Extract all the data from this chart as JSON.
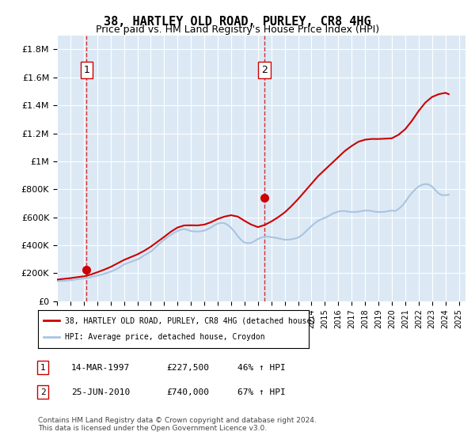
{
  "title": "38, HARTLEY OLD ROAD, PURLEY, CR8 4HG",
  "subtitle": "Price paid vs. HM Land Registry's House Price Index (HPI)",
  "background_color": "#dce9f5",
  "plot_bg_color": "#dce9f5",
  "hpi_color": "#aac4e0",
  "price_color": "#cc0000",
  "ylim": [
    0,
    1900000
  ],
  "yticks": [
    0,
    200000,
    400000,
    600000,
    800000,
    1000000,
    1200000,
    1400000,
    1600000,
    1800000
  ],
  "ytick_labels": [
    "£0",
    "£200K",
    "£400K",
    "£600K",
    "£800K",
    "£1M",
    "£1.2M",
    "£1.4M",
    "£1.6M",
    "£1.8M"
  ],
  "xlim_start": 1995.0,
  "xlim_end": 2025.5,
  "purchase1_x": 1997.2,
  "purchase1_y": 227500,
  "purchase2_x": 2010.48,
  "purchase2_y": 740000,
  "legend_label_price": "38, HARTLEY OLD ROAD, PURLEY, CR8 4HG (detached house)",
  "legend_label_hpi": "HPI: Average price, detached house, Croydon",
  "table_row1": [
    "1",
    "14-MAR-1997",
    "£227,500",
    "46% ↑ HPI"
  ],
  "table_row2": [
    "2",
    "25-JUN-2010",
    "£740,000",
    "67% ↑ HPI"
  ],
  "footer": "Contains HM Land Registry data © Crown copyright and database right 2024.\nThis data is licensed under the Open Government Licence v3.0.",
  "hpi_data_x": [
    1995.0,
    1995.25,
    1995.5,
    1995.75,
    1996.0,
    1996.25,
    1996.5,
    1996.75,
    1997.0,
    1997.25,
    1997.5,
    1997.75,
    1998.0,
    1998.25,
    1998.5,
    1998.75,
    1999.0,
    1999.25,
    1999.5,
    1999.75,
    2000.0,
    2000.25,
    2000.5,
    2000.75,
    2001.0,
    2001.25,
    2001.5,
    2001.75,
    2002.0,
    2002.25,
    2002.5,
    2002.75,
    2003.0,
    2003.25,
    2003.5,
    2003.75,
    2004.0,
    2004.25,
    2004.5,
    2004.75,
    2005.0,
    2005.25,
    2005.5,
    2005.75,
    2006.0,
    2006.25,
    2006.5,
    2006.75,
    2007.0,
    2007.25,
    2007.5,
    2007.75,
    2008.0,
    2008.25,
    2008.5,
    2008.75,
    2009.0,
    2009.25,
    2009.5,
    2009.75,
    2010.0,
    2010.25,
    2010.5,
    2010.75,
    2011.0,
    2011.25,
    2011.5,
    2011.75,
    2012.0,
    2012.25,
    2012.5,
    2012.75,
    2013.0,
    2013.25,
    2013.5,
    2013.75,
    2014.0,
    2014.25,
    2014.5,
    2014.75,
    2015.0,
    2015.25,
    2015.5,
    2015.75,
    2016.0,
    2016.25,
    2016.5,
    2016.75,
    2017.0,
    2017.25,
    2017.5,
    2017.75,
    2018.0,
    2018.25,
    2018.5,
    2018.75,
    2019.0,
    2019.25,
    2019.5,
    2019.75,
    2020.0,
    2020.25,
    2020.5,
    2020.75,
    2021.0,
    2021.25,
    2021.5,
    2021.75,
    2022.0,
    2022.25,
    2022.5,
    2022.75,
    2023.0,
    2023.25,
    2023.5,
    2023.75,
    2024.0,
    2024.25
  ],
  "hpi_data_y": [
    145000,
    145500,
    146000,
    147000,
    150000,
    153000,
    157000,
    160000,
    163000,
    167000,
    172000,
    178000,
    183000,
    189000,
    196000,
    203000,
    211000,
    221000,
    233000,
    247000,
    263000,
    272000,
    281000,
    290000,
    298000,
    311000,
    328000,
    340000,
    355000,
    375000,
    398000,
    420000,
    440000,
    458000,
    475000,
    490000,
    502000,
    512000,
    516000,
    510000,
    502000,
    499000,
    498000,
    500000,
    505000,
    515000,
    528000,
    543000,
    555000,
    560000,
    558000,
    545000,
    525000,
    498000,
    465000,
    438000,
    420000,
    415000,
    418000,
    430000,
    445000,
    455000,
    462000,
    462000,
    458000,
    455000,
    450000,
    445000,
    440000,
    440000,
    443000,
    448000,
    455000,
    470000,
    492000,
    515000,
    537000,
    558000,
    575000,
    587000,
    596000,
    608000,
    622000,
    633000,
    641000,
    645000,
    645000,
    640000,
    638000,
    638000,
    640000,
    645000,
    648000,
    648000,
    645000,
    640000,
    638000,
    638000,
    640000,
    645000,
    648000,
    645000,
    660000,
    680000,
    710000,
    745000,
    775000,
    800000,
    820000,
    832000,
    838000,
    835000,
    820000,
    795000,
    770000,
    758000,
    758000,
    762000
  ],
  "price_data_x": [
    1995.0,
    1995.5,
    1996.0,
    1996.5,
    1997.0,
    1997.5,
    1998.0,
    1998.5,
    1999.0,
    1999.5,
    2000.0,
    2000.5,
    2001.0,
    2001.5,
    2002.0,
    2002.5,
    2003.0,
    2003.5,
    2004.0,
    2004.5,
    2005.0,
    2005.5,
    2006.0,
    2006.5,
    2007.0,
    2007.5,
    2008.0,
    2008.5,
    2009.0,
    2009.5,
    2010.0,
    2010.5,
    2011.0,
    2011.5,
    2012.0,
    2012.5,
    2013.0,
    2013.5,
    2014.0,
    2014.5,
    2015.0,
    2015.5,
    2016.0,
    2016.5,
    2017.0,
    2017.5,
    2018.0,
    2018.5,
    2019.0,
    2019.5,
    2020.0,
    2020.5,
    2021.0,
    2021.5,
    2022.0,
    2022.5,
    2023.0,
    2023.5,
    2024.0,
    2024.25
  ],
  "price_data_y": [
    155000,
    160000,
    165000,
    172000,
    178000,
    190000,
    207000,
    225000,
    245000,
    270000,
    295000,
    315000,
    335000,
    360000,
    390000,
    425000,
    460000,
    497000,
    527000,
    542000,
    543000,
    542000,
    548000,
    565000,
    588000,
    605000,
    615000,
    605000,
    575000,
    548000,
    530000,
    545000,
    570000,
    600000,
    635000,
    680000,
    730000,
    785000,
    840000,
    895000,
    940000,
    985000,
    1030000,
    1075000,
    1110000,
    1140000,
    1155000,
    1160000,
    1160000,
    1162000,
    1165000,
    1190000,
    1230000,
    1290000,
    1360000,
    1420000,
    1460000,
    1480000,
    1490000,
    1480000
  ]
}
